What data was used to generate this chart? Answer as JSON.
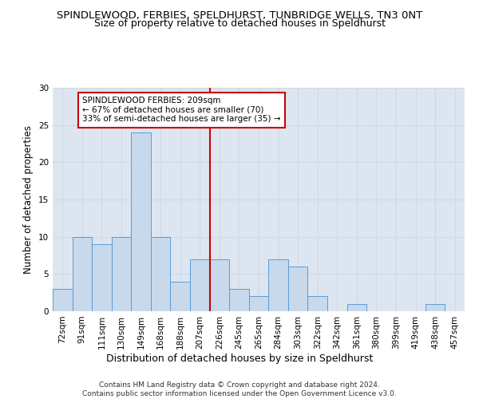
{
  "title": "SPINDLEWOOD, FERBIES, SPELDHURST, TUNBRIDGE WELLS, TN3 0NT",
  "subtitle": "Size of property relative to detached houses in Speldhurst",
  "xlabel": "Distribution of detached houses by size in Speldhurst",
  "ylabel": "Number of detached properties",
  "categories": [
    "72sqm",
    "91sqm",
    "111sqm",
    "130sqm",
    "149sqm",
    "168sqm",
    "188sqm",
    "207sqm",
    "226sqm",
    "245sqm",
    "265sqm",
    "284sqm",
    "303sqm",
    "322sqm",
    "342sqm",
    "361sqm",
    "380sqm",
    "399sqm",
    "419sqm",
    "438sqm",
    "457sqm"
  ],
  "values": [
    3,
    10,
    9,
    10,
    24,
    10,
    4,
    7,
    7,
    3,
    2,
    7,
    6,
    2,
    0,
    1,
    0,
    0,
    0,
    1,
    0
  ],
  "bar_color": "#c8d9ec",
  "bar_edge_color": "#5b9bd5",
  "grid_color": "#d0d8e4",
  "background_color": "#dde6f0",
  "vline_x_index": 7,
  "vline_color": "#cc0000",
  "annotation_text": "SPINDLEWOOD FERBIES: 209sqm\n← 67% of detached houses are smaller (70)\n33% of semi-detached houses are larger (35) →",
  "annotation_box_facecolor": "#ffffff",
  "annotation_box_edgecolor": "#cc0000",
  "ylim": [
    0,
    30
  ],
  "yticks": [
    0,
    5,
    10,
    15,
    20,
    25,
    30
  ],
  "title_fontsize": 9.5,
  "subtitle_fontsize": 9,
  "xlabel_fontsize": 9,
  "ylabel_fontsize": 8.5,
  "tick_fontsize": 7.5,
  "annotation_fontsize": 7.5,
  "footer_text": "Contains HM Land Registry data © Crown copyright and database right 2024.\nContains public sector information licensed under the Open Government Licence v3.0.",
  "footer_fontsize": 6.5
}
